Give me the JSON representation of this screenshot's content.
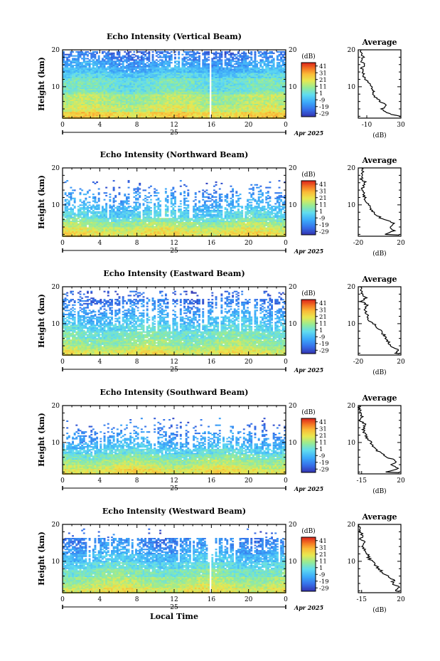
{
  "chart_data": [
    {
      "type": "heatmap",
      "title": "Echo Intensity (Vertical Beam)",
      "ylabel": "Height (km)",
      "xlabel": "",
      "x_ticks": [
        "0",
        "4",
        "8",
        "12",
        "16",
        "20",
        "0"
      ],
      "xlim": [
        0,
        24
      ],
      "date_label": "25",
      "month_label": "Apr 2025",
      "y_ticks": [
        "20",
        "10"
      ],
      "ylim": [
        1.5,
        20
      ],
      "colorbar": {
        "title": "(dB)",
        "ticks": [
          "41",
          "31",
          "21",
          "11",
          "1",
          "-9",
          "-19",
          "-29"
        ],
        "range": [
          -34,
          46
        ]
      },
      "profile": {
        "title": "Average",
        "xlabel": "(dB)",
        "x_ticks": [
          "-10",
          "30"
        ],
        "xlim": [
          -20,
          30
        ],
        "y_ticks": [
          "20",
          "10"
        ],
        "heights": [
          2,
          3,
          4,
          5,
          6,
          7,
          8,
          9,
          10,
          11,
          12,
          13,
          14,
          15,
          16,
          17,
          18,
          19,
          20
        ],
        "values": [
          28,
          12,
          8,
          14,
          6,
          1,
          -4,
          -2,
          -5,
          -8,
          -12,
          -14,
          -14,
          -16,
          -12,
          -17,
          -14,
          -16,
          -17
        ]
      },
      "structure": {
        "tops": [
          19.8,
          18.6,
          17.3,
          15.6,
          14,
          12.6,
          9,
          8,
          5,
          3.4
        ],
        "mean": [
          -22,
          -19,
          -13,
          -9,
          -3,
          3,
          7,
          13,
          17,
          25
        ],
        "gaps": [
          0.35,
          0.3,
          0.15,
          0.02,
          0,
          0,
          0,
          0,
          0,
          0
        ],
        "white_cols": [
          0.66
        ]
      }
    },
    {
      "type": "heatmap",
      "title": "Echo Intensity (Northward Beam)",
      "ylabel": "Height (km)",
      "xlabel": "",
      "x_ticks": [
        "0",
        "4",
        "8",
        "12",
        "16",
        "20",
        "0"
      ],
      "xlim": [
        0,
        24
      ],
      "date_label": "25",
      "month_label": "Apr 2025",
      "y_ticks": [
        "20",
        "10"
      ],
      "ylim": [
        1.5,
        20
      ],
      "colorbar": {
        "title": "(dB)",
        "ticks": [
          "41",
          "31",
          "21",
          "11",
          "1",
          "-9",
          "-19",
          "-29"
        ],
        "range": [
          -34,
          46
        ]
      },
      "profile": {
        "title": "Average",
        "xlabel": "(dB)",
        "x_ticks": [
          "-20",
          "20"
        ],
        "xlim": [
          -20,
          20
        ],
        "y_ticks": [
          "20",
          "10"
        ],
        "heights": [
          2,
          3,
          4,
          5,
          6,
          7,
          8,
          9,
          10,
          11,
          12,
          13,
          14,
          15,
          16,
          17,
          18,
          19,
          20
        ],
        "values": [
          4,
          14,
          9,
          14,
          4,
          -2,
          -6,
          -8,
          -10,
          -13,
          -14,
          -15,
          -17,
          -15,
          -13,
          -17,
          -17,
          -16,
          -17
        ]
      },
      "structure": {
        "tops": [
          17,
          15,
          13.6,
          11.8,
          10,
          8.6,
          6.8,
          5.5,
          4,
          3
        ],
        "mean": [
          -22,
          -20,
          -16,
          -12,
          -7,
          -2,
          5,
          12,
          18,
          22
        ],
        "gaps": [
          0.93,
          0.78,
          0.62,
          0.45,
          0.25,
          0.12,
          0.05,
          0.02,
          0,
          0
        ],
        "white_cols": []
      }
    },
    {
      "type": "heatmap",
      "title": "Echo Intensity (Eastward Beam)",
      "ylabel": "Height (km)",
      "xlabel": "",
      "x_ticks": [
        "0",
        "4",
        "8",
        "12",
        "16",
        "20",
        "0"
      ],
      "xlim": [
        0,
        24
      ],
      "date_label": "25",
      "month_label": "Apr 2025",
      "y_ticks": [
        "20",
        "10"
      ],
      "ylim": [
        1.5,
        20
      ],
      "colorbar": {
        "title": "(dB)",
        "ticks": [
          "41",
          "31",
          "21",
          "11",
          "1",
          "-9",
          "-19",
          "-29"
        ],
        "range": [
          -34,
          46
        ]
      },
      "profile": {
        "title": "Average",
        "xlabel": "(dB)",
        "x_ticks": [
          "-20",
          "20"
        ],
        "xlim": [
          -20,
          20
        ],
        "y_ticks": [
          "20",
          "10"
        ],
        "heights": [
          2,
          3,
          4,
          5,
          6,
          7,
          8,
          9,
          10,
          11,
          12,
          13,
          14,
          15,
          16,
          17,
          18,
          19,
          20
        ],
        "values": [
          14,
          18,
          10,
          8,
          6,
          4,
          1,
          -2,
          -6,
          -10,
          -11,
          -13,
          -14,
          -12,
          -17,
          -13,
          -16,
          -18,
          -18
        ]
      },
      "structure": {
        "tops": [
          19,
          17,
          15.5,
          14,
          12,
          10,
          8,
          6,
          4.2,
          3
        ],
        "mean": [
          -24,
          -20,
          -17,
          -13,
          -7,
          -1,
          5,
          10,
          15,
          20
        ],
        "gaps": [
          0.75,
          0.35,
          0.55,
          0.4,
          0.25,
          0.12,
          0.05,
          0.02,
          0,
          0
        ],
        "white_cols": []
      }
    },
    {
      "type": "heatmap",
      "title": "Echo Intensity (Southward Beam)",
      "ylabel": "Height (km)",
      "xlabel": "",
      "x_ticks": [
        "0",
        "4",
        "8",
        "12",
        "16",
        "20",
        "0"
      ],
      "xlim": [
        0,
        24
      ],
      "date_label": "25",
      "month_label": "Apr 2025",
      "y_ticks": [
        "20",
        "10"
      ],
      "ylim": [
        1.5,
        20
      ],
      "colorbar": {
        "title": "(dB)",
        "ticks": [
          "41",
          "31",
          "21",
          "11",
          "1",
          "-9",
          "-19",
          "-29"
        ],
        "range": [
          -34,
          46
        ]
      },
      "profile": {
        "title": "Average",
        "xlabel": "(dB)",
        "x_ticks": [
          "-15",
          "20"
        ],
        "xlim": [
          -18,
          20
        ],
        "y_ticks": [
          "20",
          "10"
        ],
        "heights": [
          2,
          3,
          4,
          5,
          6,
          7,
          8,
          9,
          10,
          11,
          12,
          13,
          14,
          15,
          16,
          17,
          18,
          19,
          20
        ],
        "values": [
          6,
          18,
          12,
          16,
          8,
          3,
          -2,
          -5,
          -7,
          -10,
          -11,
          -13,
          -14,
          -12,
          -16,
          -14,
          -16,
          -17,
          -17
        ]
      },
      "structure": {
        "tops": [
          17,
          15,
          13.4,
          11.8,
          10,
          8.6,
          7,
          5.5,
          4,
          3
        ],
        "mean": [
          -22,
          -20,
          -16,
          -12,
          -7,
          -1,
          6,
          12,
          17,
          22
        ],
        "gaps": [
          0.95,
          0.8,
          0.6,
          0.45,
          0.2,
          0.1,
          0.03,
          0,
          0,
          0
        ],
        "white_cols": []
      }
    },
    {
      "type": "heatmap",
      "title": "Echo Intensity (Westward Beam)",
      "ylabel": "Height (km)",
      "xlabel": "Local Time",
      "x_ticks": [
        "0",
        "4",
        "8",
        "12",
        "16",
        "20",
        "0"
      ],
      "xlim": [
        0,
        24
      ],
      "date_label": "25",
      "month_label": "Apr 2025",
      "y_ticks": [
        "20",
        "10"
      ],
      "ylim": [
        1.5,
        20
      ],
      "colorbar": {
        "title": "(dB)",
        "ticks": [
          "41",
          "31",
          "21",
          "11",
          "1",
          "-9",
          "-19",
          "-29"
        ],
        "range": [
          -34,
          46
        ]
      },
      "profile": {
        "title": "Average",
        "xlabel": "(dB)",
        "x_ticks": [
          "-15",
          "20"
        ],
        "xlim": [
          -18,
          20
        ],
        "y_ticks": [
          "20",
          "10"
        ],
        "heights": [
          2,
          3,
          4,
          5,
          6,
          7,
          8,
          9,
          10,
          11,
          12,
          13,
          14,
          15,
          16,
          17,
          18,
          19,
          20
        ],
        "values": [
          16,
          19,
          12,
          14,
          8,
          4,
          0,
          -3,
          -6,
          -9,
          -10,
          -12,
          -14,
          -12,
          -16,
          -14,
          -16,
          -17,
          -17
        ]
      },
      "structure": {
        "tops": [
          19,
          16.6,
          15,
          13.6,
          12,
          10,
          8,
          6,
          4.2,
          3
        ],
        "mean": [
          -24,
          -18,
          -16,
          -12,
          -6,
          0,
          6,
          12,
          16,
          20
        ],
        "gaps": [
          0.92,
          0.3,
          0.3,
          0.2,
          0.12,
          0.05,
          0.02,
          0,
          0,
          0
        ],
        "white_cols": [
          0.66
        ]
      }
    }
  ]
}
